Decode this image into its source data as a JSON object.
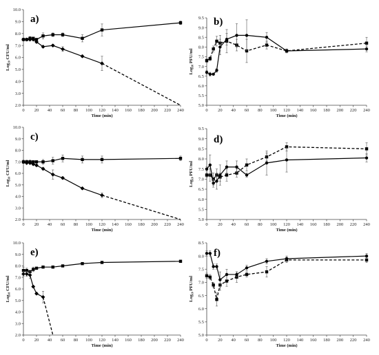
{
  "chart_data": [
    {
      "panel": "a)",
      "type": "line",
      "xlabel": "Time (min)",
      "ylabel": "Log₁₀ CFU/ml",
      "xlim": [
        0,
        240
      ],
      "ylim": [
        2.0,
        10.0
      ],
      "yticks": [
        2.0,
        3.0,
        4.0,
        5.0,
        6.0,
        7.0,
        8.0,
        9.0,
        10.0
      ],
      "xticks": [
        0,
        20,
        40,
        60,
        80,
        100,
        120,
        140,
        160,
        180,
        200,
        220,
        240
      ],
      "series": [
        {
          "marker": "square",
          "dash": false,
          "x": [
            0,
            5,
            10,
            15,
            20,
            30,
            45,
            60,
            90,
            120,
            240
          ],
          "y": [
            7.5,
            7.5,
            7.6,
            7.6,
            7.5,
            7.8,
            7.9,
            7.9,
            7.6,
            8.3,
            8.9
          ],
          "err": [
            0.1,
            0.1,
            0.15,
            0.1,
            0.1,
            0.25,
            0.15,
            0.15,
            0.3,
            0.5,
            0.15
          ]
        },
        {
          "marker": "diamond",
          "dash": false,
          "x": [
            0,
            5,
            10,
            15,
            20,
            30,
            45,
            60,
            90,
            120
          ],
          "y": [
            7.5,
            7.5,
            7.5,
            7.5,
            7.3,
            6.9,
            7.0,
            6.7,
            6.1,
            5.5
          ],
          "err": [
            0.1,
            0.1,
            0.1,
            0.1,
            0.1,
            0.1,
            0.1,
            0.2,
            0.1,
            0.6
          ]
        },
        {
          "marker": "none",
          "dash": true,
          "x": [
            120,
            240
          ],
          "y": [
            5.5,
            2.0
          ],
          "err": [
            0,
            0
          ]
        }
      ]
    },
    {
      "panel": "b)",
      "type": "line",
      "xlabel": "Time (min)",
      "ylabel": "Log₁₀ PFU/ml",
      "xlim": [
        0,
        240
      ],
      "ylim": [
        5.0,
        9.5
      ],
      "yticks": [
        5.0,
        5.5,
        6.0,
        6.5,
        7.0,
        7.5,
        8.0,
        8.5,
        9.0,
        9.5
      ],
      "xticks": [
        0,
        20,
        40,
        60,
        80,
        100,
        120,
        140,
        160,
        180,
        200,
        220,
        240
      ],
      "series": [
        {
          "marker": "square",
          "dash": true,
          "x": [
            0,
            5,
            10,
            15,
            20,
            30,
            45,
            60,
            90,
            120,
            240
          ],
          "y": [
            7.3,
            7.4,
            7.9,
            8.3,
            8.2,
            8.3,
            8.1,
            7.8,
            8.1,
            7.8,
            8.2
          ],
          "err": [
            0.1,
            0.1,
            0.15,
            0.25,
            0.4,
            0.6,
            0.3,
            0.6,
            0.2,
            0.1,
            0.3
          ]
        },
        {
          "marker": "circle",
          "dash": false,
          "x": [
            0,
            5,
            10,
            15,
            20,
            30,
            45,
            60,
            90,
            120,
            240
          ],
          "y": [
            6.7,
            6.6,
            6.6,
            6.8,
            8.0,
            8.4,
            8.6,
            8.6,
            8.5,
            7.8,
            7.9
          ],
          "err": [
            0.1,
            0.1,
            0.05,
            0.1,
            0.4,
            0.3,
            0.6,
            0.8,
            0.25,
            0.1,
            0.15
          ]
        }
      ]
    },
    {
      "panel": "c)",
      "type": "line",
      "xlabel": "Time (min)",
      "ylabel": "Log₁₀ CFU/ml",
      "xlim": [
        0,
        240
      ],
      "ylim": [
        2.0,
        10.0
      ],
      "yticks": [
        2.0,
        3.0,
        4.0,
        5.0,
        6.0,
        7.0,
        8.0,
        9.0,
        10.0
      ],
      "xticks": [
        0,
        20,
        40,
        60,
        80,
        100,
        120,
        140,
        160,
        180,
        200,
        220,
        240
      ],
      "series": [
        {
          "marker": "square",
          "dash": false,
          "x": [
            0,
            5,
            10,
            15,
            20,
            30,
            45,
            60,
            90,
            120,
            240
          ],
          "y": [
            7.0,
            7.0,
            7.0,
            7.0,
            7.0,
            7.0,
            7.1,
            7.3,
            7.2,
            7.2,
            7.3
          ],
          "err": [
            0.15,
            0.15,
            0.15,
            0.1,
            0.1,
            0.2,
            0.3,
            0.3,
            0.3,
            0.3,
            0.2
          ]
        },
        {
          "marker": "diamond",
          "dash": false,
          "x": [
            0,
            5,
            10,
            15,
            20,
            30,
            45,
            60,
            90,
            120
          ],
          "y": [
            7.0,
            6.9,
            6.9,
            6.8,
            6.7,
            6.4,
            5.9,
            5.6,
            4.7,
            4.1
          ],
          "err": [
            0.1,
            0.1,
            0.1,
            0.1,
            0.1,
            0.1,
            0.4,
            0.1,
            0.1,
            0.2
          ]
        },
        {
          "marker": "none",
          "dash": true,
          "x": [
            120,
            240
          ],
          "y": [
            4.1,
            2.0
          ],
          "err": [
            0,
            0
          ]
        }
      ]
    },
    {
      "panel": "d)",
      "type": "line",
      "xlabel": "Time (min)",
      "ylabel": "Log₁₀ PFU/ml",
      "xlim": [
        0,
        240
      ],
      "ylim": [
        5.0,
        9.5
      ],
      "yticks": [
        5.0,
        5.5,
        6.0,
        6.5,
        7.0,
        7.5,
        8.0,
        8.5,
        9.0,
        9.5
      ],
      "xticks": [
        0,
        20,
        40,
        60,
        80,
        100,
        120,
        140,
        160,
        180,
        200,
        220,
        240
      ],
      "series": [
        {
          "marker": "square",
          "dash": true,
          "x": [
            0,
            5,
            10,
            15,
            20,
            30,
            45,
            60,
            90,
            120,
            240
          ],
          "y": [
            7.2,
            7.2,
            7.0,
            7.2,
            7.1,
            7.2,
            7.3,
            7.7,
            8.1,
            8.6,
            8.5
          ],
          "err": [
            0.1,
            0.3,
            0.3,
            0.3,
            0.2,
            0.3,
            0.2,
            0.3,
            0.2,
            0.2,
            0.3
          ]
        },
        {
          "marker": "circle",
          "dash": false,
          "x": [
            0,
            5,
            10,
            15,
            20,
            30,
            45,
            60,
            90,
            120,
            240
          ],
          "y": [
            7.5,
            7.7,
            6.8,
            6.9,
            7.2,
            7.6,
            7.6,
            7.2,
            7.8,
            7.95,
            8.05
          ],
          "err": [
            0.1,
            0.5,
            0.2,
            0.4,
            0.5,
            0.3,
            0.3,
            0.1,
            0.6,
            0.6,
            0.2
          ]
        }
      ]
    },
    {
      "panel": "e)",
      "type": "line",
      "xlabel": "Time (min)",
      "ylabel": "Log₁₀ CFU/ml",
      "xlim": [
        0,
        240
      ],
      "ylim": [
        2.0,
        10.0
      ],
      "yticks": [
        2.0,
        3.0,
        4.0,
        5.0,
        6.0,
        7.0,
        8.0,
        9.0,
        10.0
      ],
      "xticks": [
        0,
        20,
        40,
        60,
        80,
        100,
        120,
        140,
        160,
        180,
        200,
        220,
        240
      ],
      "series": [
        {
          "marker": "square",
          "dash": false,
          "x": [
            0,
            5,
            10,
            15,
            20,
            30,
            45,
            60,
            90,
            120,
            240
          ],
          "y": [
            7.6,
            7.6,
            7.5,
            7.7,
            7.8,
            7.9,
            7.9,
            8.0,
            8.2,
            8.3,
            8.4
          ],
          "err": [
            0.3,
            0.2,
            0.1,
            0.2,
            0.1,
            0.1,
            0.1,
            0.1,
            0.1,
            0.1,
            0.1
          ]
        },
        {
          "marker": "diamond",
          "dash": false,
          "x": [
            0,
            5,
            10,
            15,
            20,
            30
          ],
          "y": [
            7.3,
            7.3,
            7.2,
            6.2,
            5.6,
            5.3
          ],
          "err": [
            0.2,
            0.2,
            0.3,
            0.1,
            0.1,
            0.5
          ]
        },
        {
          "marker": "none",
          "dash": true,
          "x": [
            30,
            45
          ],
          "y": [
            5.3,
            2.0
          ],
          "err": [
            0,
            0
          ]
        }
      ]
    },
    {
      "panel": "f)",
      "type": "line",
      "xlabel": "Time (min)",
      "ylabel": "Log₁₀ PFU/ml",
      "xlim": [
        0,
        240
      ],
      "ylim": [
        5.0,
        8.5
      ],
      "yticks": [
        5.0,
        5.5,
        6.0,
        6.5,
        7.0,
        7.5,
        8.0,
        8.5
      ],
      "xticks": [
        0,
        20,
        40,
        60,
        80,
        100,
        120,
        140,
        160,
        180,
        200,
        220,
        240
      ],
      "series": [
        {
          "marker": "square",
          "dash": true,
          "x": [
            0,
            5,
            10,
            15,
            20,
            30,
            45,
            60,
            90,
            120,
            240
          ],
          "y": [
            7.25,
            7.2,
            6.9,
            6.35,
            6.9,
            7.05,
            7.2,
            7.3,
            7.4,
            7.85,
            7.85
          ],
          "err": [
            0.1,
            0.1,
            0.1,
            0.25,
            0.2,
            0.2,
            0.2,
            0.1,
            0.2,
            0.1,
            0.1
          ]
        },
        {
          "marker": "circle",
          "dash": false,
          "x": [
            0,
            5,
            10,
            15,
            20,
            30,
            45,
            60,
            90,
            120,
            240
          ],
          "y": [
            8.1,
            8.1,
            7.6,
            7.6,
            7.1,
            7.3,
            7.3,
            7.55,
            7.8,
            7.9,
            8.0
          ],
          "err": [
            0.1,
            0.1,
            0.1,
            0.1,
            0.3,
            0.2,
            0.1,
            0.1,
            0.1,
            0.1,
            0.1
          ]
        }
      ]
    }
  ]
}
